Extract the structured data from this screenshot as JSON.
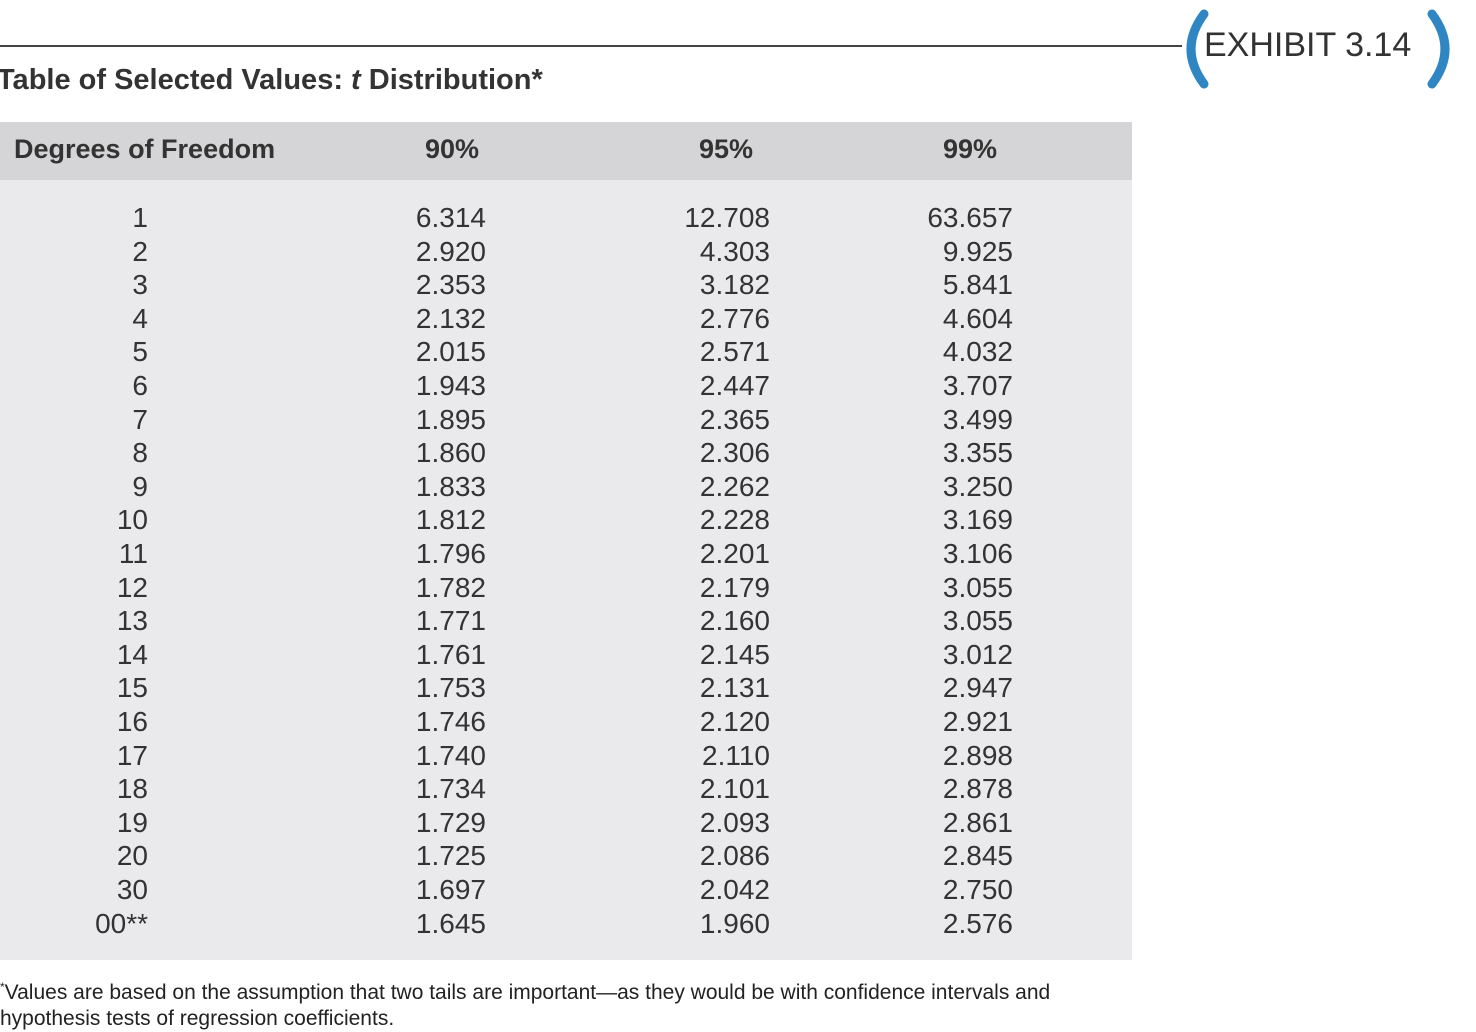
{
  "exhibit": {
    "label": "EXHIBIT 3.14"
  },
  "title": {
    "lead": "Table of Selected Values: ",
    "italic": "t",
    "tail": " Distribution*"
  },
  "table": {
    "header": [
      "Degrees of Freedom",
      "90%",
      "95%",
      "99%"
    ],
    "rows": [
      [
        "1",
        "6.314",
        "12.708",
        "63.657"
      ],
      [
        "2",
        "2.920",
        "4.303",
        "9.925"
      ],
      [
        "3",
        "2.353",
        "3.182",
        "5.841"
      ],
      [
        "4",
        "2.132",
        "2.776",
        "4.604"
      ],
      [
        "5",
        "2.015",
        "2.571",
        "4.032"
      ],
      [
        "6",
        "1.943",
        "2.447",
        "3.707"
      ],
      [
        "7",
        "1.895",
        "2.365",
        "3.499"
      ],
      [
        "8",
        "1.860",
        "2.306",
        "3.355"
      ],
      [
        "9",
        "1.833",
        "2.262",
        "3.250"
      ],
      [
        "10",
        "1.812",
        "2.228",
        "3.169"
      ],
      [
        "11",
        "1.796",
        "2.201",
        "3.106"
      ],
      [
        "12",
        "1.782",
        "2.179",
        "3.055"
      ],
      [
        "13",
        "1.771",
        "2.160",
        "3.055"
      ],
      [
        "14",
        "1.761",
        "2.145",
        "3.012"
      ],
      [
        "15",
        "1.753",
        "2.131",
        "2.947"
      ],
      [
        "16",
        "1.746",
        "2.120",
        "2.921"
      ],
      [
        "17",
        "1.740",
        "2.110",
        "2.898"
      ],
      [
        "18",
        "1.734",
        "2.101",
        "2.878"
      ],
      [
        "19",
        "1.729",
        "2.093",
        "2.861"
      ],
      [
        "20",
        "1.725",
        "2.086",
        "2.845"
      ],
      [
        "30",
        "1.697",
        "2.042",
        "2.750"
      ],
      [
        "00**",
        "1.645",
        "1.960",
        "2.576"
      ]
    ]
  },
  "footnote": {
    "mark": "*",
    "lines": [
      "Values are based on the assumption that two tails are important—as they would be with confidence intervals and",
      "hypothesis tests of regression coefficients."
    ]
  }
}
